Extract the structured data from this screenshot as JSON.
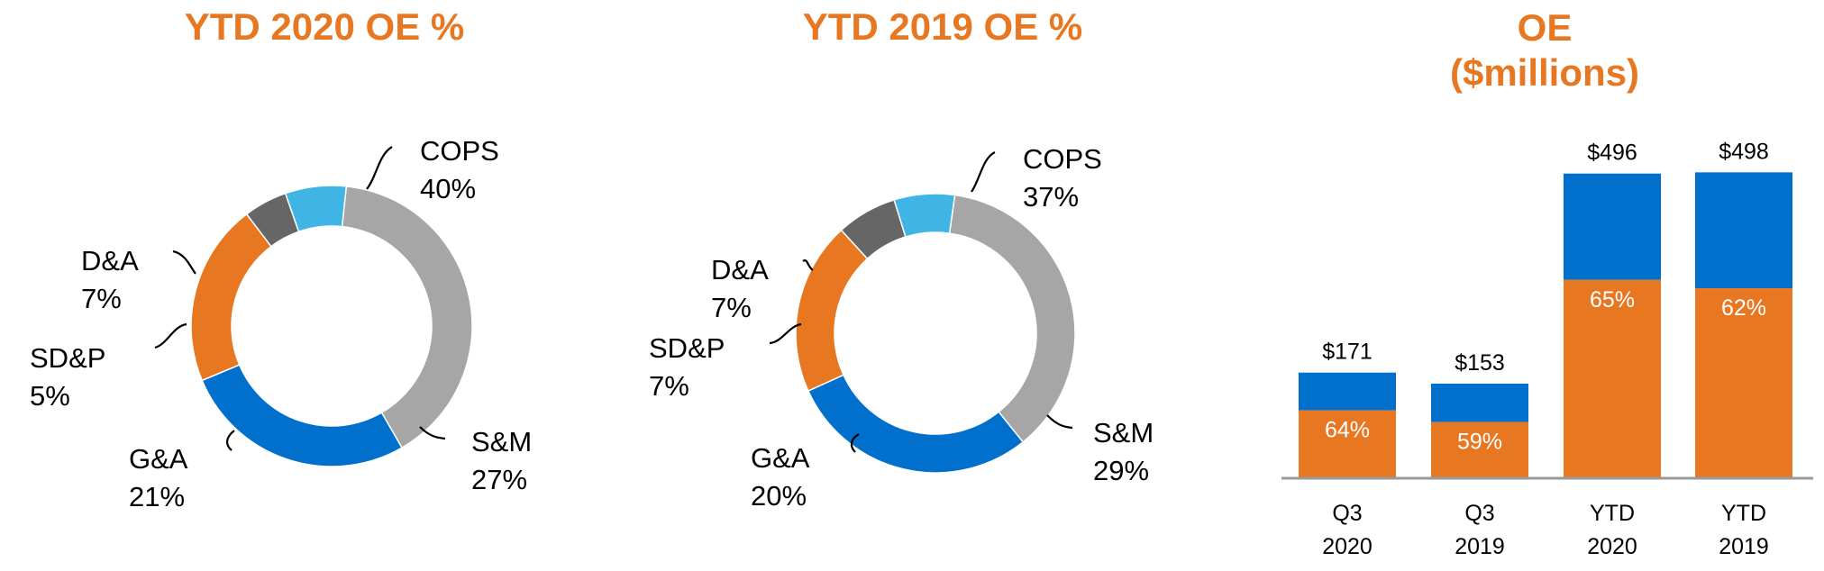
{
  "chart_data": [
    {
      "type": "pie",
      "title": "YTD 2020 OE %",
      "categories": [
        "COPS",
        "S&M",
        "G&A",
        "SD&P",
        "D&A"
      ],
      "values": [
        40,
        27,
        21,
        5,
        7
      ],
      "labels": [
        "40%",
        "27%",
        "21%",
        "5%",
        "7%"
      ],
      "colors": [
        "#A6A6A6",
        "#0070CC",
        "#E87722",
        "#666666",
        "#40B4E5"
      ]
    },
    {
      "type": "pie",
      "title": "YTD 2019 OE %",
      "categories": [
        "COPS",
        "S&M",
        "G&A",
        "SD&P",
        "D&A"
      ],
      "values": [
        37,
        29,
        20,
        7,
        7
      ],
      "labels": [
        "37%",
        "29%",
        "20%",
        "7%",
        "7%"
      ],
      "colors": [
        "#A6A6A6",
        "#0070CC",
        "#E87722",
        "#666666",
        "#40B4E5"
      ]
    },
    {
      "type": "bar",
      "title_line1": "OE",
      "title_line2": "($millions)",
      "categories": [
        [
          "Q3",
          "2020"
        ],
        [
          "Q3",
          "2019"
        ],
        [
          "YTD",
          "2020"
        ],
        [
          "YTD",
          "2019"
        ]
      ],
      "totals": [
        171,
        153,
        496,
        498
      ],
      "total_labels": [
        "$171",
        "$153",
        "$496",
        "$498"
      ],
      "orange_share": [
        64,
        59,
        65,
        62
      ],
      "orange_labels": [
        "64%",
        "59%",
        "65%",
        "62%"
      ],
      "colors": {
        "orange": "#E87722",
        "blue": "#0070CC"
      },
      "ylim": [
        0,
        520
      ]
    }
  ]
}
